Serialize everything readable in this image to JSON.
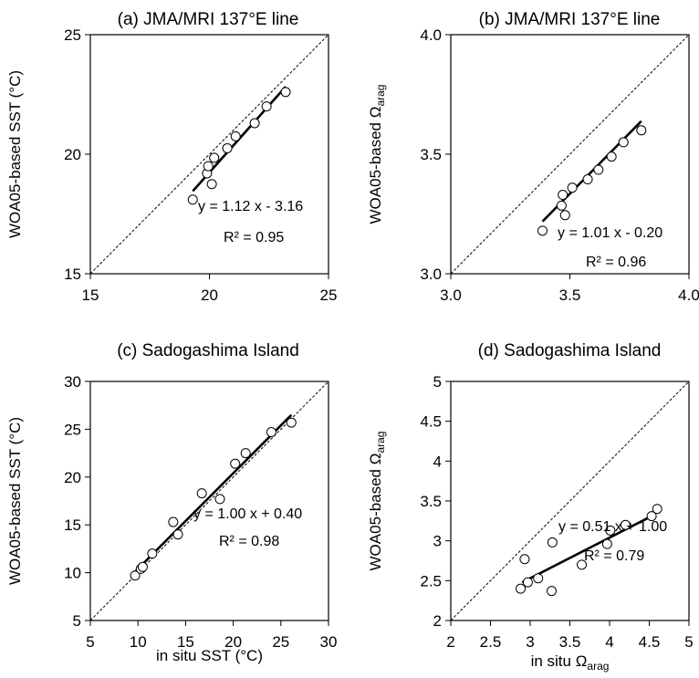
{
  "chart_data": [
    {
      "type": "scatter",
      "title": "(a) JMA/MRI 137°E line",
      "ylabel": "WOA05-based SST (°C)",
      "xlabel": "",
      "xlim": [
        15,
        25
      ],
      "ylim": [
        15,
        25
      ],
      "xticks": [
        15,
        20,
        25
      ],
      "yticks": [
        15,
        20,
        25
      ],
      "xtick_labels": [
        "15",
        "20",
        "25"
      ],
      "ytick_labels": [
        "15",
        "20",
        "25"
      ],
      "points": [
        {
          "x": 19.3,
          "y": 18.1
        },
        {
          "x": 19.9,
          "y": 19.2
        },
        {
          "x": 19.95,
          "y": 19.5
        },
        {
          "x": 20.1,
          "y": 18.75
        },
        {
          "x": 20.2,
          "y": 19.85
        },
        {
          "x": 20.75,
          "y": 20.25
        },
        {
          "x": 21.1,
          "y": 20.75
        },
        {
          "x": 21.9,
          "y": 21.3
        },
        {
          "x": 22.4,
          "y": 22.0
        },
        {
          "x": 23.2,
          "y": 22.6
        }
      ],
      "fit_x": [
        19.3,
        23.2
      ],
      "equation": "y = 1.12 x - 3.16",
      "r2": "R² = 0.95",
      "one_to_one": true
    },
    {
      "type": "scatter",
      "title": "(b) JMA/MRI 137°E line",
      "ylabel": "WOA05-based Ω",
      "ylabel_sub": "arag",
      "xlabel": "",
      "xlim": [
        3.0,
        4.0
      ],
      "ylim": [
        3.0,
        4.0
      ],
      "xticks": [
        3.0,
        3.5,
        4.0
      ],
      "yticks": [
        3.0,
        3.5,
        4.0
      ],
      "xtick_labels": [
        "3.0",
        "3.5",
        "4.0"
      ],
      "ytick_labels": [
        "3.0",
        "3.5",
        "4.0"
      ],
      "points": [
        {
          "x": 3.385,
          "y": 3.18
        },
        {
          "x": 3.465,
          "y": 3.285
        },
        {
          "x": 3.47,
          "y": 3.33
        },
        {
          "x": 3.48,
          "y": 3.245
        },
        {
          "x": 3.51,
          "y": 3.36
        },
        {
          "x": 3.575,
          "y": 3.395
        },
        {
          "x": 3.62,
          "y": 3.435
        },
        {
          "x": 3.675,
          "y": 3.49
        },
        {
          "x": 3.725,
          "y": 3.55
        },
        {
          "x": 3.8,
          "y": 3.6
        }
      ],
      "fit_x": [
        3.385,
        3.8
      ],
      "equation": "y = 1.01 x - 0.20",
      "r2": "R² = 0.96",
      "one_to_one": true
    },
    {
      "type": "scatter",
      "title": "(c) Sadogashima Island",
      "ylabel": "WOA05-based SST (°C)",
      "xlabel": "in situ SST (°C)",
      "xlim": [
        5,
        30
      ],
      "ylim": [
        5,
        30
      ],
      "xticks": [
        5,
        10,
        15,
        20,
        25,
        30
      ],
      "yticks": [
        5,
        10,
        15,
        20,
        25,
        30
      ],
      "xtick_labels": [
        "5",
        "10",
        "15",
        "20",
        "25",
        "30"
      ],
      "ytick_labels": [
        "5",
        "10",
        "15",
        "20",
        "25",
        "30"
      ],
      "points": [
        {
          "x": 9.7,
          "y": 9.7
        },
        {
          "x": 10.3,
          "y": 10.4
        },
        {
          "x": 10.5,
          "y": 10.6
        },
        {
          "x": 11.5,
          "y": 12.0
        },
        {
          "x": 13.7,
          "y": 15.3
        },
        {
          "x": 14.2,
          "y": 14.0
        },
        {
          "x": 16.7,
          "y": 18.3
        },
        {
          "x": 18.6,
          "y": 17.7
        },
        {
          "x": 20.2,
          "y": 21.4
        },
        {
          "x": 21.3,
          "y": 22.5
        },
        {
          "x": 24.0,
          "y": 24.7
        },
        {
          "x": 26.1,
          "y": 25.7
        }
      ],
      "fit_x": [
        9.7,
        26.1
      ],
      "equation": "y = 1.00 x + 0.40",
      "r2": "R² = 0.98",
      "one_to_one": true
    },
    {
      "type": "scatter",
      "title": "(d) Sadogashima Island",
      "ylabel": "WOA05-based Ω",
      "ylabel_sub": "arag",
      "xlabel": "in situ Ω",
      "xlabel_sub": "arag",
      "xlim": [
        2,
        5
      ],
      "ylim": [
        2,
        5
      ],
      "xticks": [
        2,
        2.5,
        3,
        3.5,
        4,
        4.5,
        5
      ],
      "yticks": [
        2,
        2.5,
        3,
        3.5,
        4,
        4.5,
        5
      ],
      "xtick_labels": [
        "2",
        "2.5",
        "3",
        "3.5",
        "4",
        "4.5",
        "5"
      ],
      "ytick_labels": [
        "2",
        "2.5",
        "3",
        "3.5",
        "4",
        "4.5",
        "5"
      ],
      "points": [
        {
          "x": 2.88,
          "y": 2.4
        },
        {
          "x": 2.93,
          "y": 2.77
        },
        {
          "x": 2.97,
          "y": 2.48
        },
        {
          "x": 3.1,
          "y": 2.53
        },
        {
          "x": 3.27,
          "y": 2.37
        },
        {
          "x": 3.28,
          "y": 2.98
        },
        {
          "x": 3.65,
          "y": 2.7
        },
        {
          "x": 3.97,
          "y": 2.96
        },
        {
          "x": 4.01,
          "y": 3.13
        },
        {
          "x": 4.2,
          "y": 3.2
        },
        {
          "x": 4.53,
          "y": 3.31
        },
        {
          "x": 4.6,
          "y": 3.4
        }
      ],
      "fit_x": [
        2.9,
        4.55
      ],
      "equation": "y = 0.51 x + 1.00",
      "r2": "R² = 0.79",
      "one_to_one": true
    }
  ]
}
